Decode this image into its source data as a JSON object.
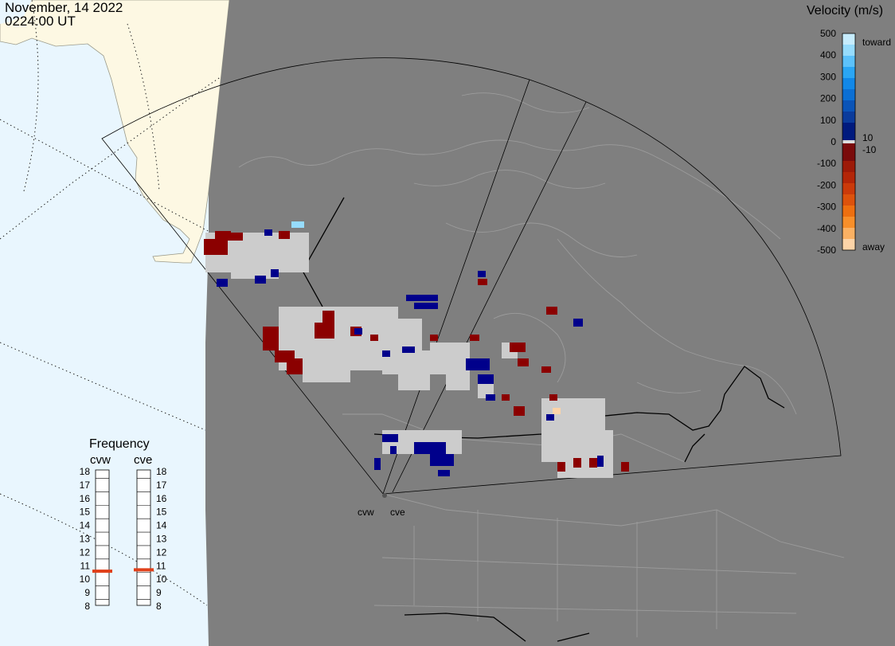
{
  "header": {
    "date": "November, 14 2022",
    "time": "0224:00 UT"
  },
  "colors": {
    "ocean": "#e9f6fe",
    "land_outside": "#fdf8e3",
    "mask": "#7f7f7f",
    "ground_scatter": "#cccccc",
    "away_dark": "#8b0000",
    "toward_dark": "#00008b"
  },
  "velocity_legend": {
    "title": "Velocity (m/s)",
    "ticks": [
      "500",
      "400",
      "300",
      "200",
      "100",
      "0",
      "-100",
      "-200",
      "-300",
      "-400",
      "-500"
    ],
    "toward_label": "toward",
    "away_label": "away",
    "pos_threshold": "10",
    "neg_threshold": "-10"
  },
  "frequency": {
    "title": "Frequency",
    "radars": [
      {
        "name": "cvw",
        "value_mhz": 10.6
      },
      {
        "name": "cve",
        "value_mhz": 10.7
      }
    ],
    "scale": [
      "18",
      "17",
      "16",
      "15",
      "14",
      "13",
      "12",
      "11",
      "10",
      "9",
      "8"
    ]
  },
  "radar_sites": [
    {
      "name": "cvw"
    },
    {
      "name": "cve"
    }
  ]
}
